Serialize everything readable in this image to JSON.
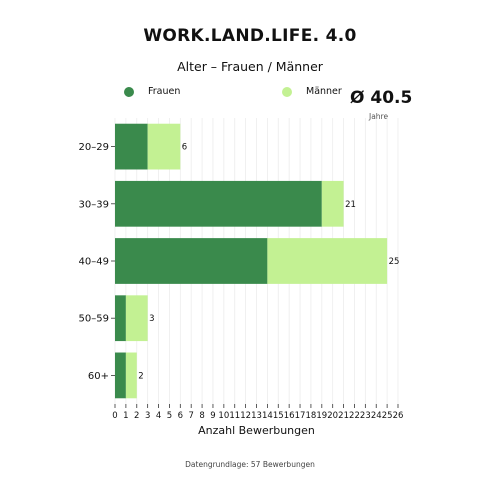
{
  "chart_data": {
    "type": "bar",
    "orientation": "horizontal",
    "stacked": true,
    "title": "WORK.LAND.LIFE. 4.0",
    "subtitle": "Alter – Frauen / Männer",
    "xlabel": "Anzahl Bewerbungen",
    "ylabel": "",
    "categories": [
      "20–29",
      "30–39",
      "40–49",
      "50–59",
      "60+"
    ],
    "series": [
      {
        "name": "Frauen",
        "values": [
          3,
          19,
          14,
          1,
          1
        ],
        "color": "#3a8a4c"
      },
      {
        "name": "Männer",
        "values": [
          3,
          2,
          11,
          2,
          1
        ],
        "color": "#c3f193"
      }
    ],
    "totals": [
      6,
      21,
      25,
      3,
      2
    ],
    "xlim": [
      0,
      26
    ],
    "xticks": [
      0,
      1,
      2,
      3,
      4,
      5,
      6,
      7,
      8,
      9,
      10,
      11,
      12,
      13,
      14,
      15,
      16,
      17,
      18,
      19,
      20,
      21,
      22,
      23,
      24,
      25,
      26
    ],
    "grid": "vertical",
    "legend_position": "top"
  },
  "average": {
    "value": "Ø 40.5",
    "unit": "Jahre"
  },
  "footer": "Datengrundlage: 57 Bewerbungen"
}
